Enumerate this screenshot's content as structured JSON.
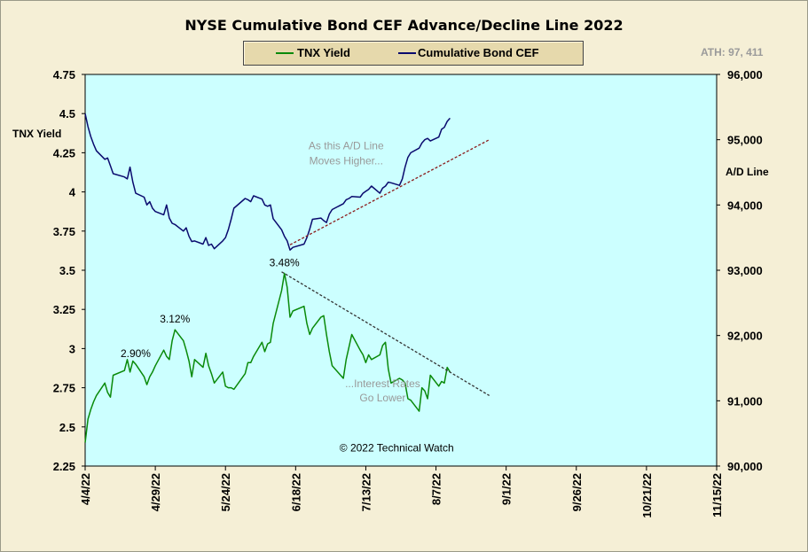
{
  "ath_label": "ATH: 97, 411",
  "chart_data": {
    "type": "line",
    "title": "NYSE Cumulative Bond CEF Advance/Decline Line 2022",
    "legend": {
      "position": "top-center",
      "entries": [
        {
          "name": "TNX Yield",
          "color": "#0a8a0a"
        },
        {
          "name": "Cumulative Bond CEF",
          "color": "#0a0a6e"
        }
      ]
    },
    "x_ticks": [
      "4/4/22",
      "4/29/22",
      "5/24/22",
      "6/18/22",
      "7/13/22",
      "8/7/22",
      "9/1/22",
      "9/26/22",
      "10/21/22",
      "11/15/22"
    ],
    "y_left": {
      "label": "TNX Yield",
      "range": [
        2.25,
        4.75
      ],
      "ticks": [
        "2.25",
        "2.5",
        "2.75",
        "3",
        "3.25",
        "3.5",
        "3.75",
        "4",
        "4.25",
        "4.5",
        "4.75"
      ]
    },
    "y_right": {
      "label": "A/D Line",
      "range": [
        90000,
        96000
      ],
      "ticks": [
        "90,000",
        "91,000",
        "92,000",
        "93,000",
        "94,000",
        "95,000",
        "96,000"
      ]
    },
    "grid": false,
    "plot_bg": "#ccffff",
    "series": [
      {
        "name": "TNX Yield",
        "axis": "left",
        "color": "#0a8a0a",
        "points": [
          [
            "2022-04-04",
            2.4
          ],
          [
            "2022-04-05",
            2.55
          ],
          [
            "2022-04-06",
            2.61
          ],
          [
            "2022-04-07",
            2.66
          ],
          [
            "2022-04-08",
            2.7
          ],
          [
            "2022-04-11",
            2.78
          ],
          [
            "2022-04-12",
            2.72
          ],
          [
            "2022-04-13",
            2.69
          ],
          [
            "2022-04-14",
            2.83
          ],
          [
            "2022-04-18",
            2.86
          ],
          [
            "2022-04-19",
            2.93
          ],
          [
            "2022-04-20",
            2.85
          ],
          [
            "2022-04-21",
            2.92
          ],
          [
            "2022-04-22",
            2.9
          ],
          [
            "2022-04-25",
            2.82
          ],
          [
            "2022-04-26",
            2.77
          ],
          [
            "2022-04-27",
            2.82
          ],
          [
            "2022-04-28",
            2.85
          ],
          [
            "2022-04-29",
            2.89
          ],
          [
            "2022-05-02",
            2.99
          ],
          [
            "2022-05-03",
            2.95
          ],
          [
            "2022-05-04",
            2.93
          ],
          [
            "2022-05-05",
            3.05
          ],
          [
            "2022-05-06",
            3.12
          ],
          [
            "2022-05-09",
            3.05
          ],
          [
            "2022-05-10",
            2.99
          ],
          [
            "2022-05-11",
            2.92
          ],
          [
            "2022-05-12",
            2.82
          ],
          [
            "2022-05-13",
            2.93
          ],
          [
            "2022-05-16",
            2.88
          ],
          [
            "2022-05-17",
            2.97
          ],
          [
            "2022-05-18",
            2.89
          ],
          [
            "2022-05-19",
            2.84
          ],
          [
            "2022-05-20",
            2.78
          ],
          [
            "2022-05-23",
            2.85
          ],
          [
            "2022-05-24",
            2.76
          ],
          [
            "2022-05-25",
            2.75
          ],
          [
            "2022-05-26",
            2.75
          ],
          [
            "2022-05-27",
            2.74
          ],
          [
            "2022-05-31",
            2.84
          ],
          [
            "2022-06-01",
            2.91
          ],
          [
            "2022-06-02",
            2.91
          ],
          [
            "2022-06-03",
            2.95
          ],
          [
            "2022-06-06",
            3.04
          ],
          [
            "2022-06-07",
            2.98
          ],
          [
            "2022-06-08",
            3.03
          ],
          [
            "2022-06-09",
            3.04
          ],
          [
            "2022-06-10",
            3.16
          ],
          [
            "2022-06-13",
            3.37
          ],
          [
            "2022-06-14",
            3.48
          ],
          [
            "2022-06-15",
            3.39
          ],
          [
            "2022-06-16",
            3.2
          ],
          [
            "2022-06-17",
            3.24
          ],
          [
            "2022-06-21",
            3.27
          ],
          [
            "2022-06-22",
            3.16
          ],
          [
            "2022-06-23",
            3.09
          ],
          [
            "2022-06-24",
            3.13
          ],
          [
            "2022-06-27",
            3.2
          ],
          [
            "2022-06-28",
            3.21
          ],
          [
            "2022-06-29",
            3.09
          ],
          [
            "2022-06-30",
            2.98
          ],
          [
            "2022-07-01",
            2.89
          ],
          [
            "2022-07-05",
            2.81
          ],
          [
            "2022-07-06",
            2.93
          ],
          [
            "2022-07-07",
            3.01
          ],
          [
            "2022-07-08",
            3.09
          ],
          [
            "2022-07-11",
            2.99
          ],
          [
            "2022-07-12",
            2.96
          ],
          [
            "2022-07-13",
            2.91
          ],
          [
            "2022-07-14",
            2.96
          ],
          [
            "2022-07-15",
            2.93
          ],
          [
            "2022-07-18",
            2.96
          ],
          [
            "2022-07-19",
            3.02
          ],
          [
            "2022-07-20",
            3.04
          ],
          [
            "2022-07-21",
            2.87
          ],
          [
            "2022-07-22",
            2.78
          ],
          [
            "2022-07-25",
            2.81
          ],
          [
            "2022-07-26",
            2.8
          ],
          [
            "2022-07-27",
            2.78
          ],
          [
            "2022-07-28",
            2.68
          ],
          [
            "2022-07-29",
            2.67
          ],
          [
            "2022-08-01",
            2.6
          ],
          [
            "2022-08-02",
            2.75
          ],
          [
            "2022-08-03",
            2.73
          ],
          [
            "2022-08-04",
            2.68
          ],
          [
            "2022-08-05",
            2.83
          ],
          [
            "2022-08-08",
            2.76
          ],
          [
            "2022-08-09",
            2.79
          ],
          [
            "2022-08-10",
            2.78
          ],
          [
            "2022-08-11",
            2.88
          ],
          [
            "2022-08-12",
            2.85
          ]
        ]
      },
      {
        "name": "Cumulative Bond CEF",
        "axis": "right",
        "color": "#0a0a6e",
        "points": [
          [
            "2022-04-04",
            95400
          ],
          [
            "2022-04-05",
            95200
          ],
          [
            "2022-04-06",
            95050
          ],
          [
            "2022-04-07",
            94930
          ],
          [
            "2022-04-08",
            94830
          ],
          [
            "2022-04-11",
            94700
          ],
          [
            "2022-04-12",
            94720
          ],
          [
            "2022-04-13",
            94600
          ],
          [
            "2022-04-14",
            94480
          ],
          [
            "2022-04-18",
            94430
          ],
          [
            "2022-04-19",
            94400
          ],
          [
            "2022-04-20",
            94580
          ],
          [
            "2022-04-21",
            94350
          ],
          [
            "2022-04-22",
            94180
          ],
          [
            "2022-04-25",
            94120
          ],
          [
            "2022-04-26",
            94000
          ],
          [
            "2022-04-27",
            94050
          ],
          [
            "2022-04-28",
            93950
          ],
          [
            "2022-04-29",
            93900
          ],
          [
            "2022-05-02",
            93850
          ],
          [
            "2022-05-03",
            94000
          ],
          [
            "2022-05-04",
            93800
          ],
          [
            "2022-05-05",
            93720
          ],
          [
            "2022-05-06",
            93700
          ],
          [
            "2022-05-09",
            93600
          ],
          [
            "2022-05-10",
            93650
          ],
          [
            "2022-05-11",
            93520
          ],
          [
            "2022-05-12",
            93440
          ],
          [
            "2022-05-13",
            93450
          ],
          [
            "2022-05-16",
            93400
          ],
          [
            "2022-05-17",
            93500
          ],
          [
            "2022-05-18",
            93380
          ],
          [
            "2022-05-19",
            93400
          ],
          [
            "2022-05-20",
            93330
          ],
          [
            "2022-05-23",
            93450
          ],
          [
            "2022-05-24",
            93500
          ],
          [
            "2022-05-25",
            93620
          ],
          [
            "2022-05-26",
            93780
          ],
          [
            "2022-05-27",
            93950
          ],
          [
            "2022-05-31",
            94100
          ],
          [
            "2022-06-01",
            94080
          ],
          [
            "2022-06-02",
            94050
          ],
          [
            "2022-06-03",
            94140
          ],
          [
            "2022-06-06",
            94090
          ],
          [
            "2022-06-07",
            94000
          ],
          [
            "2022-06-08",
            93980
          ],
          [
            "2022-06-09",
            94000
          ],
          [
            "2022-06-10",
            93790
          ],
          [
            "2022-06-13",
            93620
          ],
          [
            "2022-06-14",
            93520
          ],
          [
            "2022-06-15",
            93450
          ],
          [
            "2022-06-16",
            93310
          ],
          [
            "2022-06-17",
            93350
          ],
          [
            "2022-06-21",
            93400
          ],
          [
            "2022-06-22",
            93500
          ],
          [
            "2022-06-23",
            93630
          ],
          [
            "2022-06-24",
            93780
          ],
          [
            "2022-06-27",
            93800
          ],
          [
            "2022-06-28",
            93760
          ],
          [
            "2022-06-29",
            93730
          ],
          [
            "2022-06-30",
            93860
          ],
          [
            "2022-07-01",
            93930
          ],
          [
            "2022-07-05",
            94020
          ],
          [
            "2022-07-06",
            94080
          ],
          [
            "2022-07-07",
            94100
          ],
          [
            "2022-07-08",
            94130
          ],
          [
            "2022-07-11",
            94120
          ],
          [
            "2022-07-12",
            94180
          ],
          [
            "2022-07-13",
            94210
          ],
          [
            "2022-07-14",
            94240
          ],
          [
            "2022-07-15",
            94290
          ],
          [
            "2022-07-18",
            94180
          ],
          [
            "2022-07-19",
            94260
          ],
          [
            "2022-07-20",
            94290
          ],
          [
            "2022-07-21",
            94350
          ],
          [
            "2022-07-22",
            94340
          ],
          [
            "2022-07-25",
            94300
          ],
          [
            "2022-07-26",
            94400
          ],
          [
            "2022-07-27",
            94580
          ],
          [
            "2022-07-28",
            94730
          ],
          [
            "2022-07-29",
            94800
          ],
          [
            "2022-08-01",
            94870
          ],
          [
            "2022-08-02",
            94950
          ],
          [
            "2022-08-03",
            95000
          ],
          [
            "2022-08-04",
            95020
          ],
          [
            "2022-08-05",
            94980
          ],
          [
            "2022-08-08",
            95040
          ],
          [
            "2022-08-09",
            95160
          ],
          [
            "2022-08-10",
            95190
          ],
          [
            "2022-08-11",
            95280
          ],
          [
            "2022-08-12",
            95330
          ]
        ]
      }
    ],
    "annotations": [
      {
        "text": "3.48%",
        "x": "2022-06-14",
        "y": 3.48,
        "axis": "left"
      },
      {
        "text": "3.12%",
        "x": "2022-05-06",
        "y": 3.12,
        "axis": "left"
      },
      {
        "text": "2.90%",
        "x": "2022-04-22",
        "y": 2.9,
        "axis": "left"
      },
      {
        "text": "As this A/D Line",
        "x": "2022-07-06",
        "y": 94770,
        "axis": "right",
        "color": "#999999"
      },
      {
        "text": "Moves Higher...",
        "x": "2022-07-06",
        "y": 94540,
        "axis": "right",
        "color": "#999999"
      },
      {
        "text": "...Interest Rates",
        "x": "2022-07-19",
        "y": 2.72,
        "axis": "left",
        "color": "#999999"
      },
      {
        "text": "Go Lower",
        "x": "2022-07-19",
        "y": 2.63,
        "axis": "left",
        "color": "#999999"
      },
      {
        "text": "© 2022 Technical Watch",
        "x": "2022-07-24",
        "y": 2.31,
        "axis": "left",
        "color": "#000000"
      }
    ],
    "trendlines": [
      {
        "axis": "right",
        "color": "#8b1a1a",
        "style": "dashed",
        "from": [
          "2022-06-16",
          93390
        ],
        "to": [
          "2022-08-26",
          95000
        ]
      },
      {
        "axis": "left",
        "color": "#333333",
        "style": "dashed",
        "from": [
          "2022-06-13",
          3.49
        ],
        "to": [
          "2022-08-26",
          2.7
        ]
      }
    ]
  }
}
